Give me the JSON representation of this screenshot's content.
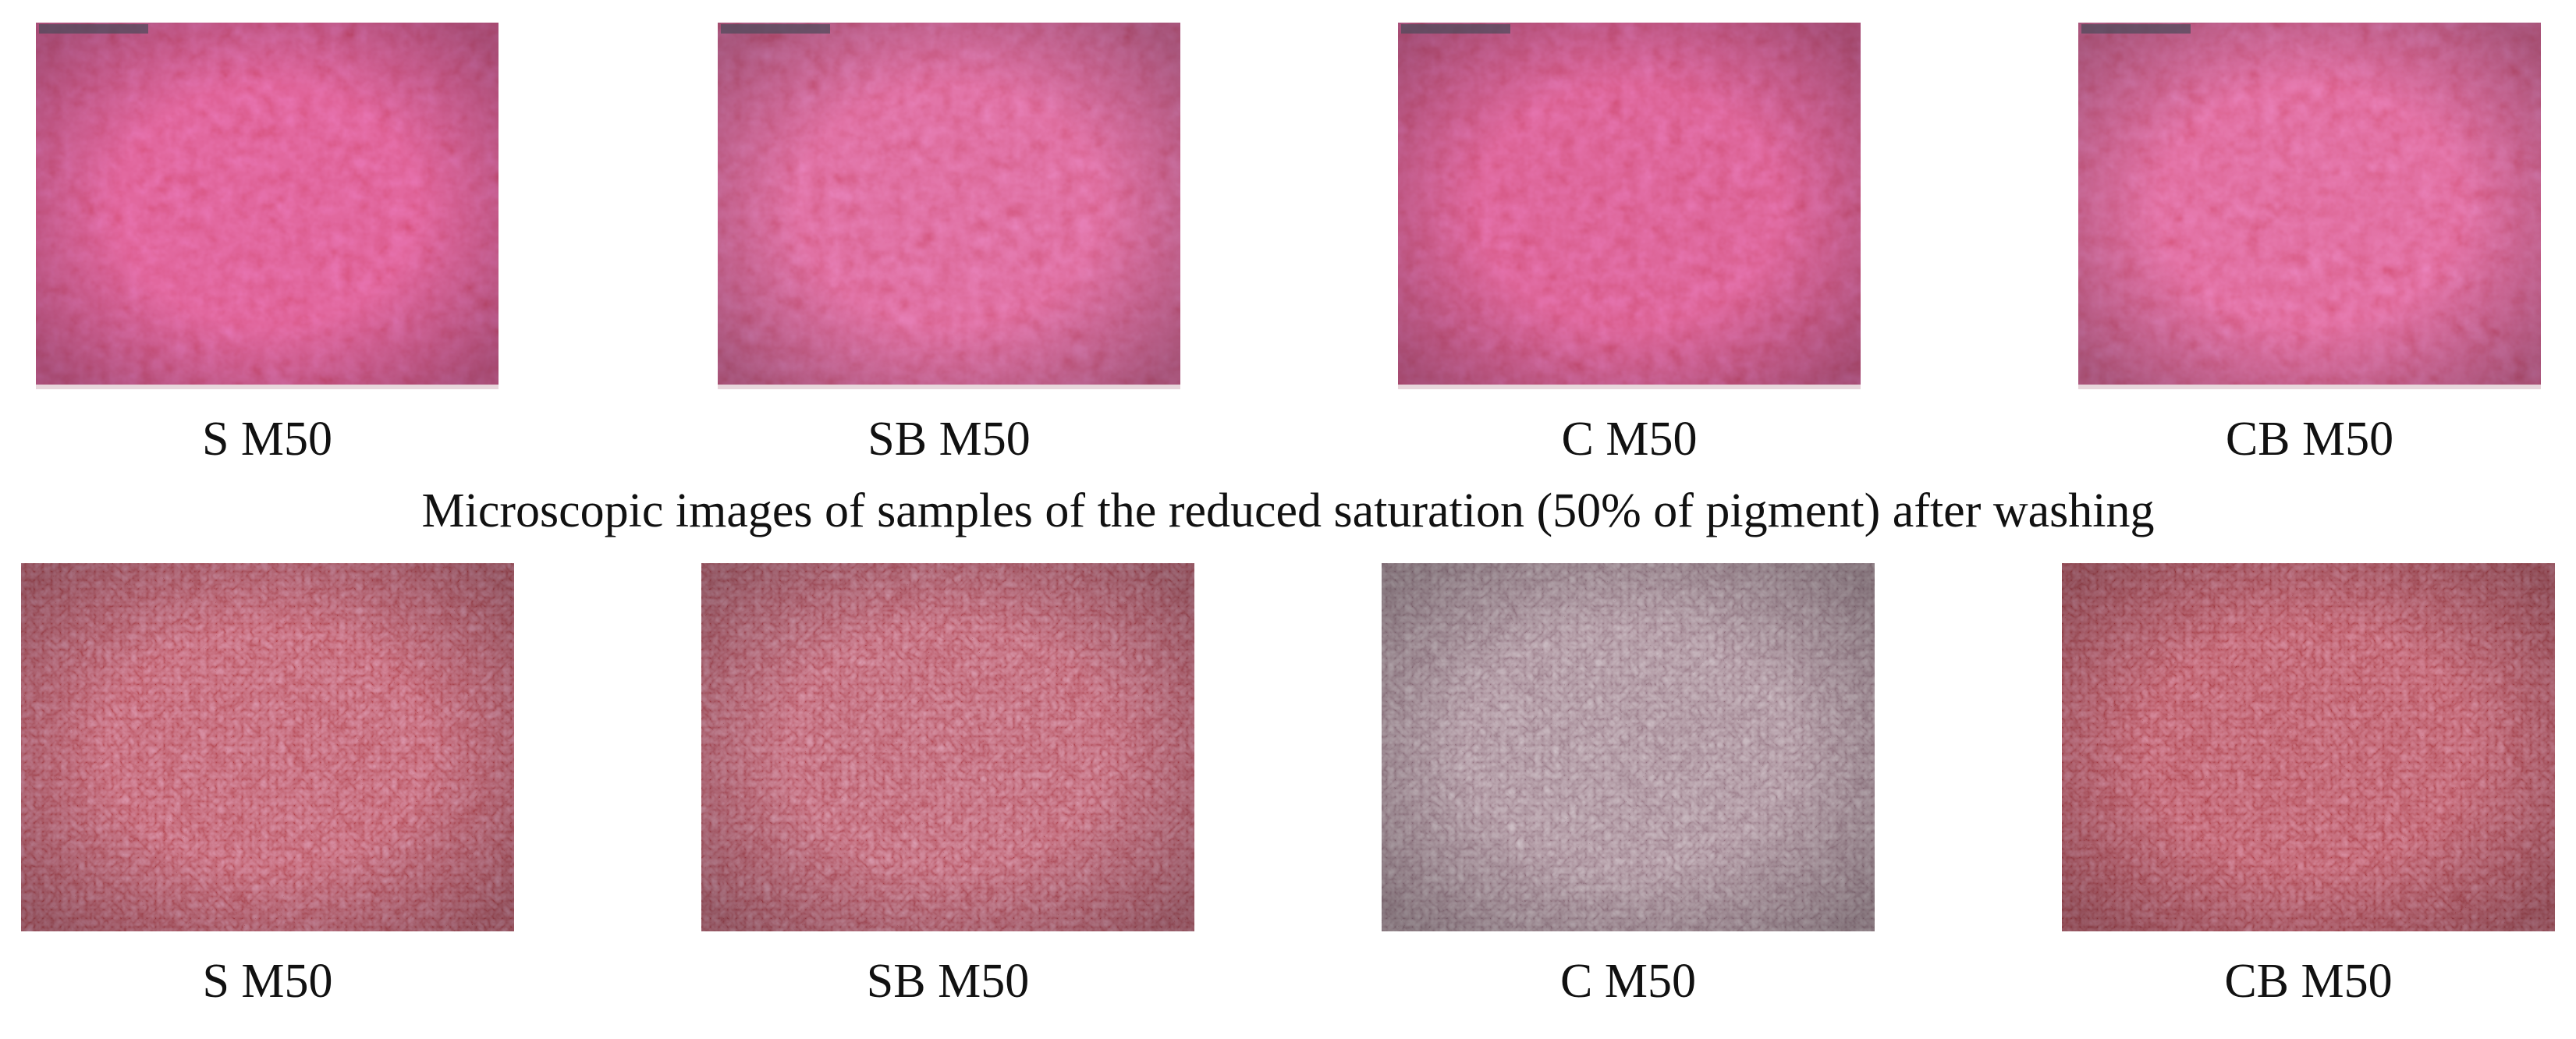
{
  "top_row": {
    "images": [
      {
        "label": "S M50"
      },
      {
        "label": "SB M50"
      },
      {
        "label": "C M50"
      },
      {
        "label": "CB M50"
      }
    ]
  },
  "caption": "Microscopic images of samples of the reduced saturation (50% of pigment) after washing",
  "bottom_row": {
    "images": [
      {
        "label": "S M50"
      },
      {
        "label": "SB M50"
      },
      {
        "label": "C M50"
      },
      {
        "label": "CB M50"
      }
    ]
  }
}
